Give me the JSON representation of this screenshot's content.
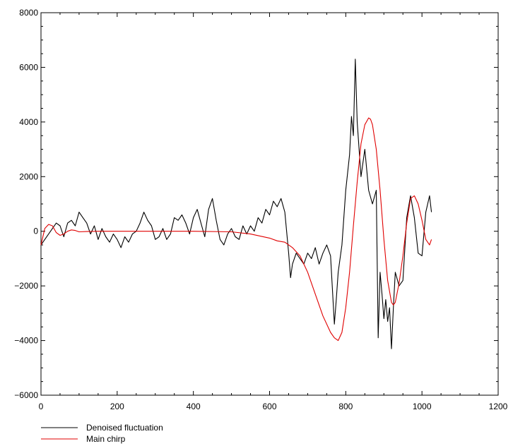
{
  "chart_data": {
    "type": "line",
    "xlim": [
      0,
      1200
    ],
    "ylim": [
      -6000,
      8000
    ],
    "x_ticks": [
      0,
      200,
      400,
      600,
      800,
      1000,
      1200
    ],
    "x_tick_labels": [
      "0",
      "200",
      "400",
      "600",
      "800",
      "1000",
      "1200"
    ],
    "y_ticks": [
      -6000,
      -4000,
      -2000,
      0,
      2000,
      4000,
      6000,
      8000
    ],
    "y_tick_labels": [
      "−6000",
      "−4000",
      "−2000",
      "0",
      "2000",
      "4000",
      "6000",
      "8000"
    ],
    "grid": false,
    "legend_position": "bottom-left, below plot",
    "series": [
      {
        "name": "Denoised fluctuation",
        "color": "#000000",
        "x": [
          0,
          10,
          20,
          30,
          40,
          50,
          60,
          70,
          80,
          90,
          100,
          110,
          120,
          130,
          140,
          150,
          160,
          170,
          180,
          190,
          200,
          210,
          220,
          230,
          240,
          250,
          260,
          270,
          280,
          290,
          300,
          310,
          320,
          330,
          340,
          350,
          360,
          370,
          380,
          390,
          400,
          410,
          420,
          430,
          440,
          450,
          460,
          470,
          480,
          490,
          500,
          510,
          520,
          530,
          540,
          550,
          560,
          570,
          580,
          590,
          600,
          610,
          620,
          630,
          640,
          650,
          655,
          660,
          670,
          680,
          690,
          700,
          710,
          720,
          730,
          740,
          750,
          760,
          770,
          775,
          780,
          790,
          800,
          810,
          815,
          820,
          825,
          830,
          840,
          850,
          860,
          870,
          880,
          885,
          890,
          895,
          900,
          905,
          910,
          915,
          920,
          925,
          930,
          940,
          950,
          960,
          970,
          980,
          990,
          1000,
          1010,
          1020,
          1025
        ],
        "y": [
          -500,
          -300,
          -100,
          100,
          300,
          200,
          -200,
          300,
          400,
          200,
          700,
          500,
          300,
          -100,
          200,
          -300,
          100,
          -200,
          -400,
          -100,
          -300,
          -600,
          -200,
          -400,
          -100,
          0,
          300,
          700,
          400,
          200,
          -300,
          -200,
          100,
          -300,
          -100,
          500,
          400,
          600,
          300,
          -100,
          500,
          800,
          300,
          -200,
          800,
          1200,
          400,
          -300,
          -500,
          -100,
          100,
          -200,
          -300,
          200,
          -100,
          200,
          0,
          500,
          300,
          800,
          600,
          1100,
          900,
          1200,
          700,
          -800,
          -1700,
          -1200,
          -800,
          -1000,
          -1200,
          -800,
          -1000,
          -600,
          -1200,
          -800,
          -500,
          -900,
          -3400,
          -2500,
          -1500,
          -500,
          1500,
          2800,
          4200,
          3500,
          6300,
          4000,
          2000,
          3000,
          1500,
          1000,
          1500,
          -3900,
          -1500,
          -2300,
          -3200,
          -2500,
          -3300,
          -2800,
          -4300,
          -2800,
          -1500,
          -2000,
          -1800,
          500,
          1300,
          500,
          -800,
          -900,
          700,
          1300,
          700
        ]
      },
      {
        "name": "Main chirp",
        "color": "#e00000",
        "x": [
          0,
          10,
          20,
          30,
          40,
          50,
          60,
          70,
          80,
          90,
          100,
          120,
          150,
          200,
          300,
          400,
          500,
          550,
          600,
          620,
          640,
          650,
          660,
          680,
          700,
          720,
          740,
          760,
          770,
          780,
          790,
          800,
          810,
          820,
          830,
          840,
          850,
          860,
          865,
          870,
          880,
          890,
          900,
          910,
          920,
          925,
          930,
          940,
          950,
          960,
          970,
          980,
          990,
          1000,
          1010,
          1020,
          1025
        ],
        "y": [
          -500,
          100,
          250,
          200,
          -50,
          -150,
          -100,
          0,
          50,
          30,
          -20,
          -10,
          0,
          0,
          0,
          0,
          -20,
          -100,
          -250,
          -350,
          -400,
          -500,
          -600,
          -900,
          -1500,
          -2300,
          -3100,
          -3700,
          -3900,
          -4000,
          -3700,
          -2800,
          -1500,
          200,
          1800,
          3200,
          3900,
          4150,
          4100,
          3900,
          3000,
          1500,
          -300,
          -1800,
          -2600,
          -2700,
          -2600,
          -1900,
          -900,
          300,
          1200,
          1300,
          1000,
          400,
          -300,
          -500,
          -300
        ]
      }
    ]
  }
}
